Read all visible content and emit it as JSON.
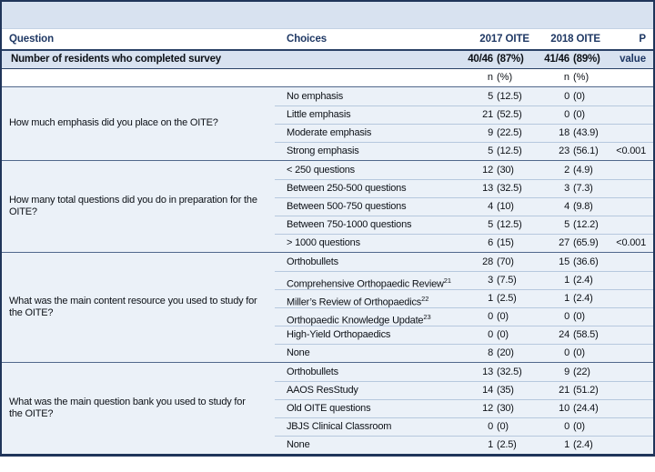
{
  "colors": {
    "outer_border": "#20355A",
    "navy_text": "#1F3864",
    "band_blue": "#D8E2F0",
    "section_row_blue": "#EBF1F8",
    "section_divider": "#51688C",
    "row_divider": "#B6C8DE",
    "body_text": "#0D1117"
  },
  "table": {
    "columns": {
      "question": "Question",
      "choices": "Choices",
      "y2017": "2017 OITE",
      "y2018": "2018 OITE",
      "p": "P value"
    },
    "survey_row": {
      "label": "Number of residents who completed survey",
      "n17": "40/46",
      "p17": "(87%)",
      "n18": "41/46",
      "p18": "(89%)"
    },
    "subheader": {
      "n17": "n",
      "p17": "(%)",
      "n18": "n",
      "p18": "(%)"
    },
    "sections": [
      {
        "question": "How much emphasis did you place on the OITE?",
        "rows": [
          {
            "label": "No emphasis",
            "n17": "5",
            "p17": "(12.5)",
            "n18": "0",
            "p18": "(0)",
            "pval": ""
          },
          {
            "label": "Little emphasis",
            "n17": "21",
            "p17": "(52.5)",
            "n18": "0",
            "p18": "(0)",
            "pval": ""
          },
          {
            "label": "Moderate emphasis",
            "n17": "9",
            "p17": "(22.5)",
            "n18": "18",
            "p18": "(43.9)",
            "pval": ""
          },
          {
            "label": "Strong emphasis",
            "n17": "5",
            "p17": "(12.5)",
            "n18": "23",
            "p18": "(56.1)",
            "pval": "<0.001"
          }
        ]
      },
      {
        "question": "How many total questions did you do in preparation for the OITE?",
        "rows": [
          {
            "label": "< 250 questions",
            "n17": "12",
            "p17": "(30)",
            "n18": "2",
            "p18": "(4.9)",
            "pval": ""
          },
          {
            "label": "Between 250-500 questions",
            "n17": "13",
            "p17": "(32.5)",
            "n18": "3",
            "p18": "(7.3)",
            "pval": ""
          },
          {
            "label": "Between 500-750 questions",
            "n17": "4",
            "p17": "(10)",
            "n18": "4",
            "p18": "(9.8)",
            "pval": ""
          },
          {
            "label": "Between 750-1000 questions",
            "n17": "5",
            "p17": "(12.5)",
            "n18": "5",
            "p18": "(12.2)",
            "pval": ""
          },
          {
            "label": "> 1000 questions",
            "n17": "6",
            "p17": "(15)",
            "n18": "27",
            "p18": "(65.9)",
            "pval": "<0.001"
          }
        ]
      },
      {
        "question": "What was the main content resource you used to study for the OITE?",
        "rows": [
          {
            "label": "Orthobullets",
            "sup": "",
            "n17": "28",
            "p17": "(70)",
            "n18": "15",
            "p18": "(36.6)",
            "pval": ""
          },
          {
            "label": "Comprehensive Orthopaedic Review",
            "sup": "21",
            "n17": "3",
            "p17": "(7.5)",
            "n18": "1",
            "p18": "(2.4)",
            "pval": ""
          },
          {
            "label": "Miller’s Review of Orthopaedics",
            "sup": "22",
            "n17": "1",
            "p17": "(2.5)",
            "n18": "1",
            "p18": "(2.4)",
            "pval": ""
          },
          {
            "label": "Orthopaedic Knowledge Update",
            "sup": "23",
            "n17": "0",
            "p17": "(0)",
            "n18": "0",
            "p18": "(0)",
            "pval": ""
          },
          {
            "label": "High-Yield Orthopaedics",
            "sup": "",
            "n17": "0",
            "p17": "(0)",
            "n18": "24",
            "p18": "(58.5)",
            "pval": ""
          },
          {
            "label": "None",
            "sup": "",
            "n17": "8",
            "p17": "(20)",
            "n18": "0",
            "p18": "(0)",
            "pval": ""
          }
        ]
      },
      {
        "question": "What was the main question bank you used to study for the OITE?",
        "rows": [
          {
            "label": "Orthobullets",
            "n17": "13",
            "p17": "(32.5)",
            "n18": "9",
            "p18": "(22)",
            "pval": ""
          },
          {
            "label": "AAOS ResStudy",
            "n17": "14",
            "p17": "(35)",
            "n18": "21",
            "p18": "(51.2)",
            "pval": ""
          },
          {
            "label": "Old OITE questions",
            "n17": "12",
            "p17": "(30)",
            "n18": "10",
            "p18": "(24.4)",
            "pval": ""
          },
          {
            "label": "JBJS Clinical Classroom",
            "n17": "0",
            "p17": "(0)",
            "n18": "0",
            "p18": "(0)",
            "pval": ""
          },
          {
            "label": "None",
            "n17": "1",
            "p17": "(2.5)",
            "n18": "1",
            "p18": "(2.4)",
            "pval": ""
          }
        ]
      }
    ]
  }
}
